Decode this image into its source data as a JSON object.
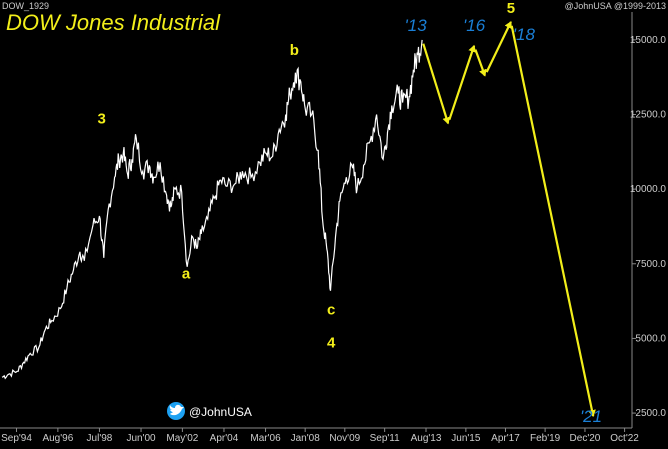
{
  "header": {
    "symbol": "DOW_1929",
    "credit": "@JohnUSA @1999-2013"
  },
  "chart_data": {
    "type": "line",
    "title": "DOW Jones Industrial",
    "xlabel": "",
    "ylabel": "",
    "ylim": [
      2000,
      16000
    ],
    "x_tick_labels": [
      "Sep'94",
      "Aug'96",
      "Jul'98",
      "Jun'00",
      "May'02",
      "Apr'04",
      "Mar'06",
      "Jan'08",
      "Nov'09",
      "Sep'11",
      "Aug'13",
      "Jun'15",
      "Apr'17",
      "Feb'19",
      "Dec'20",
      "Oct'22"
    ],
    "x_tick_years": [
      1994.67,
      1996.58,
      1998.5,
      2000.42,
      2002.33,
      2004.25,
      2006.17,
      2008.0,
      2009.83,
      2011.67,
      2013.58,
      2015.42,
      2017.25,
      2019.08,
      2020.92,
      2022.75
    ],
    "y_ticks": [
      2500,
      5000,
      7500,
      10000,
      12500,
      15000
    ],
    "y_tick_labels": [
      "2500.0",
      "5000.0",
      "7500.0",
      "10000.0",
      "12500.0",
      "15000.0"
    ],
    "grid": false,
    "colors": {
      "price": "#ffffff",
      "annotation": "#f2ee1a",
      "forecast_label": "#1a7fd6",
      "axis": "#cccccc"
    },
    "series": [
      {
        "x": [
          1994.0,
          1994.3,
          1994.7,
          1995.0,
          1995.3,
          1995.7,
          1996.0,
          1996.3,
          1996.7,
          1997.0,
          1997.3,
          1997.6,
          1997.8,
          1998.2,
          1998.5,
          1998.7,
          1998.9,
          1999.2,
          1999.4,
          1999.6,
          1999.8,
          2000.0,
          2000.2,
          2000.5,
          2000.8,
          2001.0,
          2001.3,
          2001.6,
          2001.8,
          2002.0,
          2002.3,
          2002.55,
          2002.8,
          2003.0,
          2003.2,
          2003.5,
          2003.8,
          2004.1,
          2004.4,
          2004.8,
          2005.1,
          2005.5,
          2005.9,
          2006.2,
          2006.5,
          2006.8,
          2007.1,
          2007.3,
          2007.55,
          2007.8,
          2008.0,
          2008.3,
          2008.6,
          2008.8,
          2009.0,
          2009.17,
          2009.4,
          2009.6,
          2009.9,
          2010.2,
          2010.4,
          2010.7,
          2011.0,
          2011.3,
          2011.6,
          2011.8,
          2012.0,
          2012.3,
          2012.5,
          2012.8,
          2013.0,
          2013.2,
          2013.4
        ],
        "y": [
          3700,
          3800,
          3900,
          4200,
          4500,
          4700,
          5300,
          5600,
          6000,
          6700,
          7300,
          7900,
          7600,
          8800,
          9100,
          7700,
          9300,
          10400,
          11000,
          11200,
          10500,
          11000,
          11700,
          10600,
          10800,
          10400,
          10900,
          9800,
          9400,
          10000,
          9900,
          7400,
          8400,
          8000,
          8500,
          9000,
          9700,
          10300,
          10100,
          10200,
          10600,
          10400,
          10900,
          11200,
          11100,
          12000,
          12500,
          13200,
          13900,
          13600,
          12700,
          12500,
          11300,
          9000,
          8000,
          6600,
          8400,
          9600,
          10400,
          10700,
          10000,
          10800,
          11600,
          12500,
          11000,
          11900,
          12800,
          13200,
          12900,
          13100,
          14000,
          14500,
          15000
        ]
      }
    ],
    "forecast": {
      "x": [
        2013.4,
        2014.6,
        2015.8,
        2016.3,
        2017.5,
        2021.3
      ],
      "y": [
        15000,
        12200,
        14800,
        13800,
        15600,
        2400
      ]
    },
    "annotations": [
      {
        "label": "3",
        "x": 1998.6,
        "y": 12200
      },
      {
        "label": "a",
        "x": 2002.5,
        "y": 7000
      },
      {
        "label": "b",
        "x": 2007.5,
        "y": 14500
      },
      {
        "label": "c",
        "x": 2009.2,
        "y": 5800
      },
      {
        "label": "4",
        "x": 2009.2,
        "y": 4700
      },
      {
        "label": "5",
        "x": 2017.5,
        "y": 15900
      }
    ],
    "forecast_labels": [
      {
        "label": "'13",
        "x": 2013.1,
        "y": 15300
      },
      {
        "label": "'16",
        "x": 2015.8,
        "y": 15300
      },
      {
        "label": "'18",
        "x": 2018.1,
        "y": 15000
      },
      {
        "label": "'21",
        "x": 2021.2,
        "y": 2200
      }
    ],
    "watermark": "@JohnUSA"
  }
}
